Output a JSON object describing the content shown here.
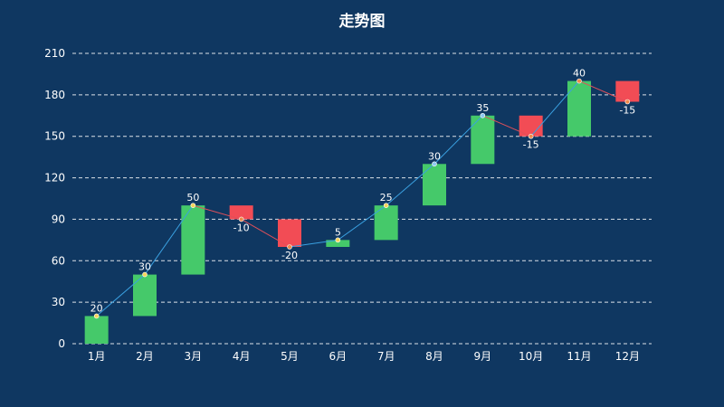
{
  "chart_data": {
    "type": "bar",
    "subtype": "waterfall",
    "title": "走势图",
    "categories": [
      "1月",
      "2月",
      "3月",
      "4月",
      "5月",
      "6月",
      "7月",
      "8月",
      "9月",
      "10月",
      "11月",
      "12月"
    ],
    "changes": [
      20,
      30,
      50,
      -10,
      -20,
      5,
      25,
      30,
      35,
      -15,
      40,
      -15
    ],
    "change_labels": [
      "20",
      "30",
      "50",
      "-10",
      "-20",
      "5",
      "25",
      "30",
      "35",
      "-15",
      "40",
      "-15"
    ],
    "ylim": [
      0,
      210
    ],
    "yticks": [
      0,
      30,
      60,
      90,
      120,
      150,
      180,
      210
    ],
    "ytick_labels": [
      "0",
      "30",
      "60",
      "90",
      "120",
      "150",
      "180",
      "210"
    ],
    "grid": true,
    "legend": "none",
    "colors": {
      "background": "#0f3761",
      "increase": "#45c96a",
      "decrease": "#f24c55",
      "line_up": "#3aa0e0",
      "line_down": "#e0505a",
      "marker_yellow": "#f5d35a",
      "marker_orange": "#f08a4b",
      "marker_blue": "#8ec8f0"
    }
  }
}
